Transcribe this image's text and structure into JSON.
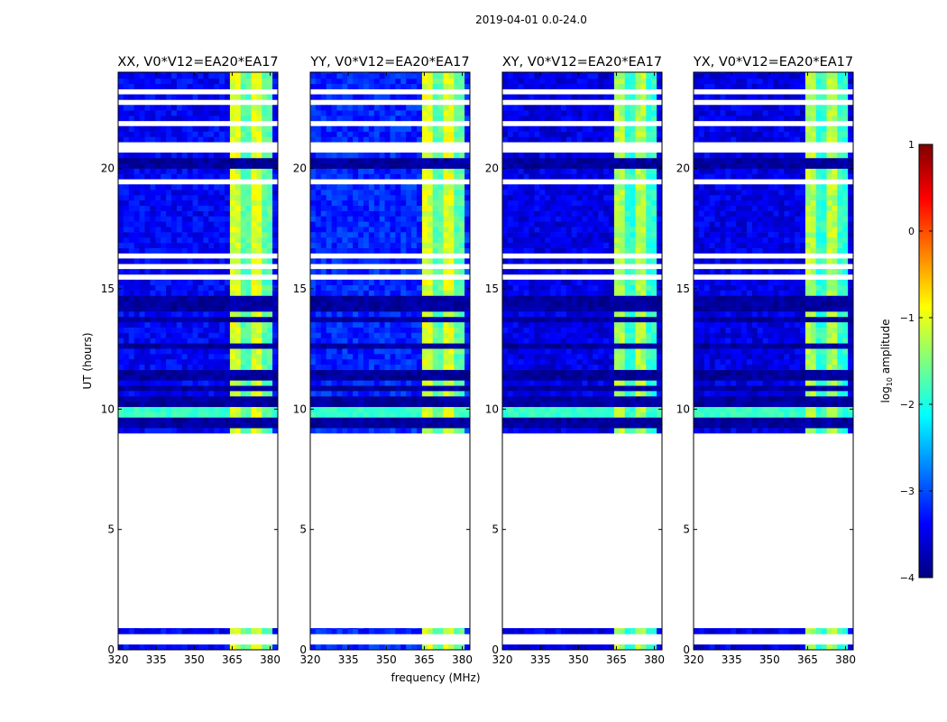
{
  "figure_title": "2019-04-01 0.0-24.0",
  "colorbar": {
    "label": "log",
    "label_sub": "10",
    "label_tail": " amplitude",
    "ticks": [
      "1",
      "0",
      "−1",
      "−2",
      "−3",
      "−4"
    ],
    "range": [
      -4,
      1
    ],
    "colormap": "jet"
  },
  "axis_labels": {
    "xlabel": "frequency (MHz)",
    "ylabel": "UT (hours)"
  },
  "chart_data": [
    {
      "type": "heatmap",
      "title": "XX, V0*V12=EA20*EA17",
      "x_ticks": [
        "320",
        "335",
        "350",
        "365",
        "380"
      ],
      "y_ticks": [
        "0",
        "5",
        "10",
        "15",
        "20"
      ],
      "xlim": [
        320,
        383
      ],
      "ylim": [
        0,
        24
      ],
      "xlabel": "",
      "ylabel": "UT (hours)",
      "data_hours": [
        [
          0.0,
          0.9
        ],
        [
          9.0,
          24.0
        ]
      ],
      "rfi_band_mhz": [
        364,
        380
      ],
      "background_log_amp": -3.4,
      "rfi_log_amp": -1.3
    },
    {
      "type": "heatmap",
      "title": "YY, V0*V12=EA20*EA17",
      "x_ticks": [
        "320",
        "335",
        "350",
        "365",
        "380"
      ],
      "y_ticks": [
        "0",
        "5",
        "10",
        "15",
        "20"
      ],
      "xlim": [
        320,
        383
      ],
      "ylim": [
        0,
        24
      ],
      "xlabel": "frequency (MHz)",
      "ylabel": "",
      "data_hours": [
        [
          0.0,
          0.9
        ],
        [
          9.0,
          24.0
        ]
      ],
      "rfi_band_mhz": [
        364,
        380
      ],
      "background_log_amp": -3.2,
      "rfi_log_amp": -1.3
    },
    {
      "type": "heatmap",
      "title": "XY, V0*V12=EA20*EA17",
      "x_ticks": [
        "320",
        "335",
        "350",
        "365",
        "380"
      ],
      "y_ticks": [
        "0",
        "5",
        "10",
        "15",
        "20"
      ],
      "xlim": [
        320,
        383
      ],
      "ylim": [
        0,
        24
      ],
      "xlabel": "",
      "ylabel": "",
      "data_hours": [
        [
          0.0,
          0.9
        ],
        [
          9.0,
          24.0
        ]
      ],
      "rfi_band_mhz": [
        364,
        380
      ],
      "background_log_amp": -3.5,
      "rfi_log_amp": -1.5
    },
    {
      "type": "heatmap",
      "title": "YX, V0*V12=EA20*EA17",
      "x_ticks": [
        "320",
        "335",
        "350",
        "365",
        "380"
      ],
      "y_ticks": [
        "0",
        "5",
        "10",
        "15",
        "20"
      ],
      "xlim": [
        320,
        383
      ],
      "ylim": [
        0,
        24
      ],
      "xlabel": "",
      "ylabel": "",
      "data_hours": [
        [
          0.0,
          0.9
        ],
        [
          9.0,
          24.0
        ]
      ],
      "rfi_band_mhz": [
        364,
        380
      ],
      "background_log_amp": -3.5,
      "rfi_log_amp": -1.5
    }
  ]
}
